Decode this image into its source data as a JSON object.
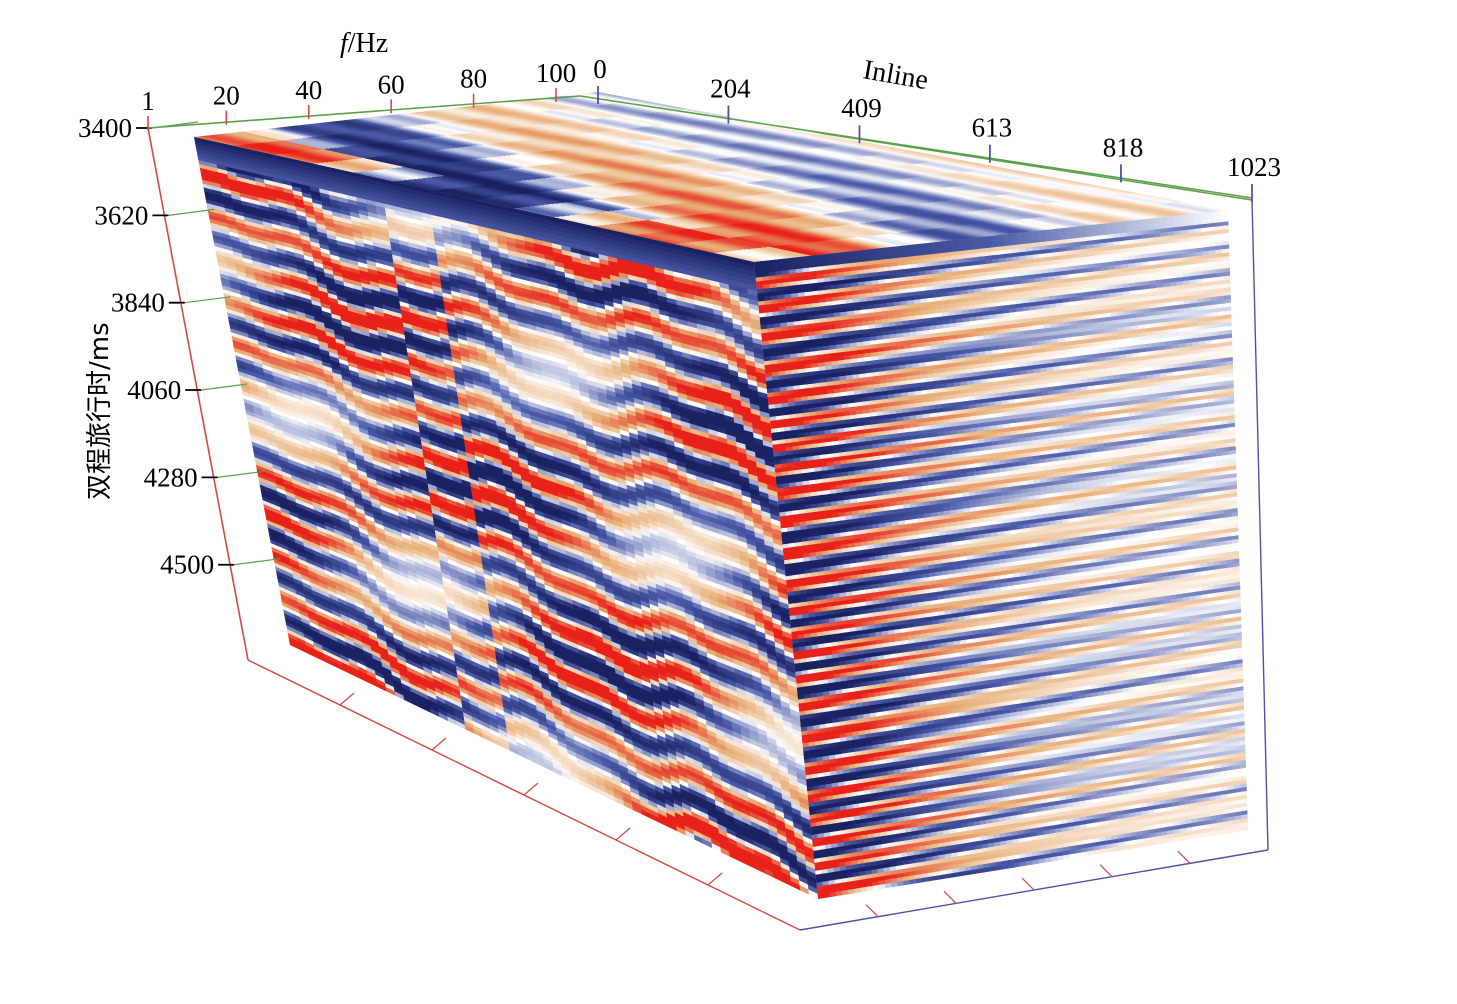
{
  "chart_data": {
    "type": "heatmap",
    "title": "",
    "subtitle": "",
    "axes": {
      "time": {
        "label": "双程旅行时/ms",
        "ticks": [
          3400,
          3620,
          3840,
          4060,
          4280,
          4500
        ],
        "range": [
          3400,
          4740
        ]
      },
      "frequency": {
        "label_italic": "f",
        "label_unit": "/Hz",
        "ticks": [
          1,
          20,
          40,
          60,
          80,
          100
        ],
        "range": [
          1,
          100
        ]
      },
      "inline": {
        "label": "Inline",
        "ticks": [
          0,
          204,
          409,
          613,
          818,
          1023
        ],
        "range": [
          0,
          1023
        ]
      }
    },
    "colormap": {
      "negative": "#1a2262",
      "mid_negative": "#4a5aa8",
      "zero": "#ffffff",
      "mid_positive": "#e8b07a",
      "positive": "#e8221a"
    },
    "axis_colors": {
      "time_axis": "#d44848",
      "frequency_axis": "#5aa04a",
      "inline_axis": "#5050a8"
    },
    "grid": false,
    "legend": "none"
  }
}
